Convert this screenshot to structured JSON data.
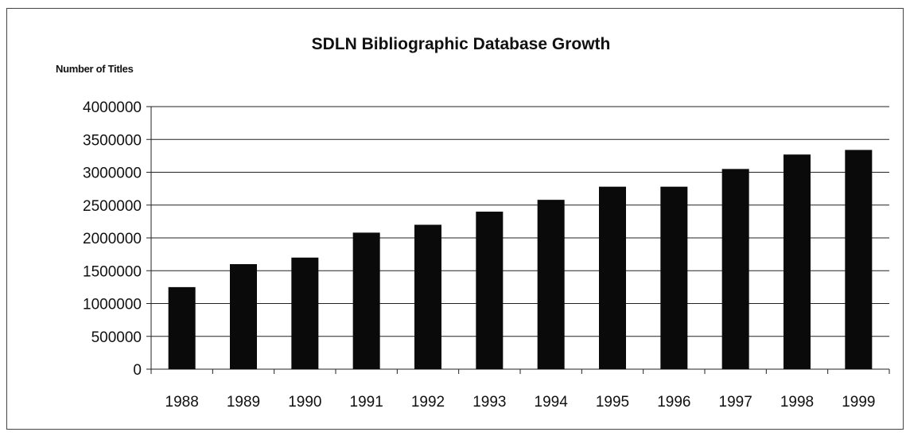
{
  "chart_data": {
    "type": "bar",
    "title": "SDLN Bibliographic Database Growth",
    "ylabel": "Number of Titles",
    "xlabel": "",
    "categories": [
      "1988",
      "1989",
      "1990",
      "1991",
      "1992",
      "1993",
      "1994",
      "1995",
      "1996",
      "1997",
      "1998",
      "1999"
    ],
    "values": [
      1250000,
      1600000,
      1700000,
      2080000,
      2200000,
      2400000,
      2580000,
      2780000,
      2780000,
      3050000,
      3270000,
      3340000
    ],
    "ylim": [
      0,
      4000000
    ],
    "yticks": [
      0,
      500000,
      1000000,
      1500000,
      2000000,
      2500000,
      3000000,
      3500000,
      4000000
    ],
    "grid": true,
    "legend": "none",
    "bar_color": "#0a0a0a"
  }
}
